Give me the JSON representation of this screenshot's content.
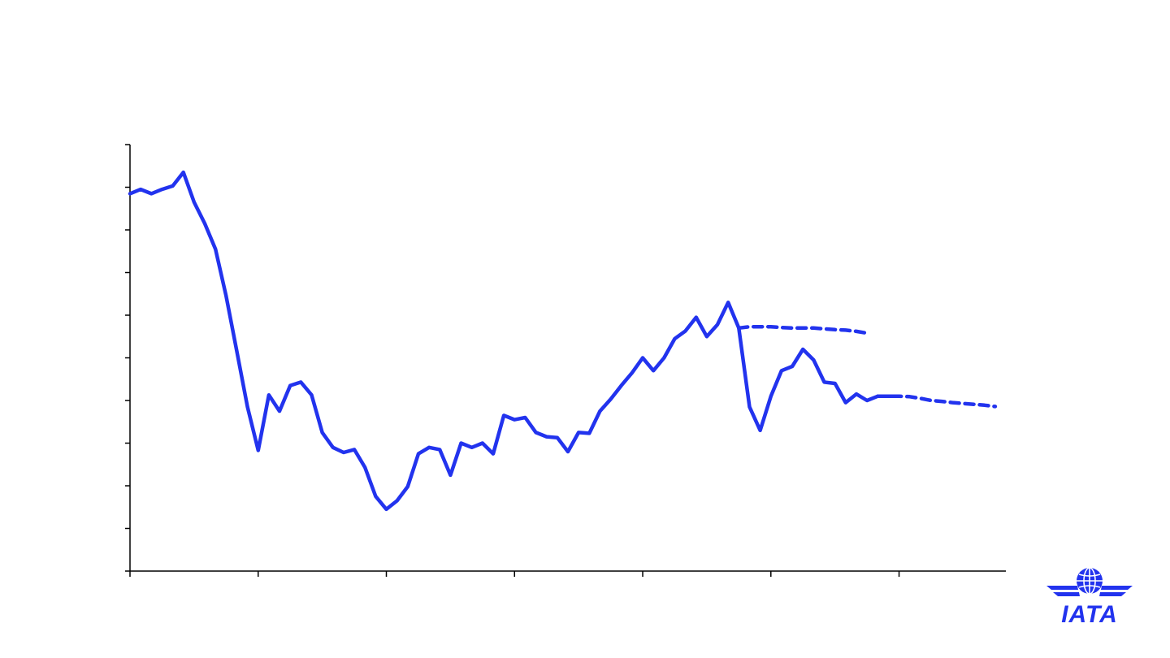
{
  "colors": {
    "series": "#2233ee",
    "axis": "#000000",
    "background": "#ffffff"
  },
  "logo": {
    "text": "IATA",
    "icon": "globe-wings-icon"
  },
  "chart_data": {
    "type": "line",
    "title": "",
    "xlabel": "",
    "ylabel": "",
    "grid": false,
    "legend": "none",
    "xlim": [
      0,
      82
    ],
    "ylim": [
      0,
      100
    ],
    "x_ticks": [
      0,
      12,
      24,
      36,
      48,
      60,
      72
    ],
    "y_ticks": [
      0,
      10,
      20,
      30,
      40,
      50,
      60,
      70,
      80,
      90,
      100
    ],
    "series": [
      {
        "style": "solid",
        "x": [
          0,
          1,
          2,
          3,
          4,
          5,
          6,
          7,
          8,
          9,
          10,
          11,
          12,
          13,
          14,
          15,
          16,
          17,
          18,
          19,
          20,
          21,
          22,
          23,
          24,
          25,
          26,
          27,
          28,
          29,
          30,
          31,
          32,
          33,
          34,
          35,
          36,
          37,
          38,
          39,
          40,
          41,
          42,
          43,
          44,
          45,
          46,
          47,
          48,
          49,
          50,
          51,
          52,
          53,
          54,
          55,
          56,
          57,
          58,
          59,
          60,
          61,
          62,
          63,
          64,
          65,
          66,
          67,
          68,
          69,
          70,
          71,
          72
        ],
        "y": [
          88.5,
          89.5,
          88.5,
          89.5,
          90.3,
          93.5,
          86.5,
          81.5,
          75.5,
          64.5,
          51.5,
          38.5,
          28.3,
          41.3,
          37.5,
          43.5,
          44.3,
          41.3,
          32.5,
          29.0,
          27.8,
          28.5,
          24.3,
          17.5,
          14.5,
          16.5,
          19.8,
          27.5,
          29.0,
          28.5,
          22.5,
          30.0,
          29.0,
          30.0,
          27.5,
          36.5,
          35.5,
          36.0,
          32.5,
          31.5,
          31.3,
          28.0,
          32.5,
          32.3,
          37.5,
          40.3,
          43.5,
          46.5,
          50.0,
          47.0,
          50.0,
          54.5,
          56.3,
          59.5,
          55.0,
          57.8,
          63.0,
          57.0,
          38.5,
          33.0,
          41.0,
          47.0,
          48.0,
          52.0,
          49.5,
          44.3,
          44.0,
          39.5,
          41.5,
          40.0,
          41.0,
          41.0,
          41.0
        ]
      },
      {
        "style": "dashed",
        "x": [
          57,
          58,
          59,
          60,
          61,
          62,
          63,
          64,
          65,
          66,
          67,
          68,
          69
        ],
        "y": [
          57.0,
          57.3,
          57.3,
          57.3,
          57.1,
          57.0,
          57.0,
          57.0,
          56.8,
          56.6,
          56.5,
          56.2,
          55.8
        ]
      },
      {
        "style": "dashed",
        "x": [
          70,
          71,
          72,
          73,
          74,
          75,
          76,
          77,
          78,
          79,
          80,
          81
        ],
        "y": [
          41.0,
          41.0,
          41.0,
          40.9,
          40.5,
          40.0,
          39.8,
          39.5,
          39.3,
          39.1,
          38.9,
          38.6
        ]
      }
    ]
  }
}
